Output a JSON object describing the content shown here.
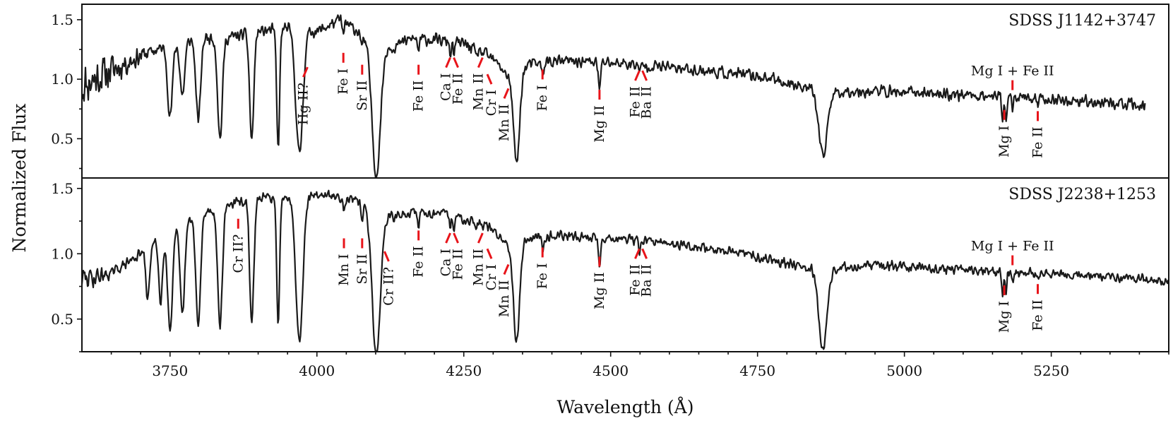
{
  "chart_data": {
    "type": "line",
    "xlabel": "Wavelength (Å)",
    "ylabel": "Normalized Flux",
    "xlim": [
      3600,
      5450
    ],
    "x_ticks": [
      3750,
      4000,
      4250,
      4500,
      4750,
      5000,
      5250
    ],
    "x_minor_step": 50,
    "y_ticks": [
      0.5,
      1.0,
      1.5
    ],
    "y_tick_labels": [
      "0.5",
      "1.0",
      "1.5"
    ],
    "panels": [
      {
        "title": "SDSS J1142+3747",
        "ylim": [
          0.17,
          1.63
        ],
        "x_end": 5410,
        "anchors": [
          [
            3600,
            0.95
          ],
          [
            3640,
            1.05
          ],
          [
            3700,
            1.2
          ],
          [
            3760,
            1.3
          ],
          [
            3800,
            1.35
          ],
          [
            3850,
            1.35
          ],
          [
            3900,
            1.4
          ],
          [
            3950,
            1.43
          ],
          [
            4000,
            1.4
          ],
          [
            4040,
            1.5
          ],
          [
            4070,
            1.4
          ],
          [
            4090,
            1.3
          ],
          [
            4130,
            1.27
          ],
          [
            4160,
            1.34
          ],
          [
            4200,
            1.33
          ],
          [
            4250,
            1.3
          ],
          [
            4290,
            1.2
          ],
          [
            4310,
            1.12
          ],
          [
            4330,
            1.0
          ],
          [
            4360,
            1.12
          ],
          [
            4400,
            1.15
          ],
          [
            4450,
            1.15
          ],
          [
            4500,
            1.14
          ],
          [
            4600,
            1.1
          ],
          [
            4700,
            1.05
          ],
          [
            4760,
            1.02
          ],
          [
            4800,
            0.97
          ],
          [
            4840,
            0.93
          ],
          [
            4870,
            0.88
          ],
          [
            4900,
            0.9
          ],
          [
            4950,
            0.9
          ],
          [
            5050,
            0.88
          ],
          [
            5150,
            0.86
          ],
          [
            5250,
            0.83
          ],
          [
            5350,
            0.8
          ],
          [
            5410,
            0.77
          ]
        ],
        "absorptions": [
          [
            3750,
            0.6,
            4
          ],
          [
            3771,
            0.45,
            4
          ],
          [
            3798,
            0.7,
            4
          ],
          [
            3835,
            0.85,
            4
          ],
          [
            3889,
            0.9,
            3.5
          ],
          [
            3934,
            1.0,
            2.5
          ],
          [
            3970,
            1.05,
            6
          ],
          [
            4101,
            1.1,
            7
          ],
          [
            4340,
            0.75,
            5
          ],
          [
            4861,
            0.55,
            7
          ],
          [
            4481,
            0.25,
            1.8
          ],
          [
            5167,
            0.2,
            1.5
          ],
          [
            5173,
            0.2,
            1.5
          ],
          [
            5184,
            0.12,
            1.5
          ],
          [
            4045,
            0.12,
            1.5
          ],
          [
            4077,
            0.1,
            1.5
          ],
          [
            4173,
            0.1,
            1.5
          ],
          [
            4227,
            0.1,
            1.5
          ],
          [
            4233,
            0.1,
            1.5
          ],
          [
            4271,
            0.08,
            1.5
          ],
          [
            4384,
            0.1,
            1.8
          ],
          [
            4549,
            0.08,
            1.5
          ],
          [
            5227,
            0.08,
            1.5
          ]
        ],
        "noise_amp": 0.06,
        "noisy_until": 3720,
        "noise_extra": 0.18,
        "seed": 11,
        "lines": [
          {
            "label": "Hg II?",
            "x": 3984,
            "y": 1.06,
            "slant": -1
          },
          {
            "label": "Fe I",
            "x": 4045,
            "y": 1.18,
            "slant": 0
          },
          {
            "label": "Sr II",
            "x": 4077,
            "y": 1.08,
            "slant": 0
          },
          {
            "label": "Fe II",
            "x": 4173,
            "y": 1.08,
            "slant": 0
          },
          {
            "label": "Ca I",
            "x": 4227,
            "y": 1.14,
            "slant": -1
          },
          {
            "label": "Fe II",
            "x": 4233,
            "y": 1.14,
            "slant": 1
          },
          {
            "label": "Mn II",
            "x": 4282,
            "y": 1.14,
            "slant": -1
          },
          {
            "label": "Cr I",
            "x": 4290,
            "y": 1.0,
            "slant": 1
          },
          {
            "label": "Mn II",
            "x": 4326,
            "y": 0.88,
            "slant": -1
          },
          {
            "label": "Fe I",
            "x": 4384,
            "y": 1.04,
            "slant": 0
          },
          {
            "label": "Mg II",
            "x": 4481,
            "y": 0.87,
            "slant": 0
          },
          {
            "label": "Fe II",
            "x": 4549,
            "y": 1.03,
            "slant": -1
          },
          {
            "label": "Ba II",
            "x": 4554,
            "y": 1.03,
            "slant": 1
          },
          {
            "label": "Mg I",
            "x": 5170,
            "y": 0.7,
            "slant": 0
          },
          {
            "label": "Fe II",
            "x": 5227,
            "y": 0.69,
            "slant": 0
          },
          {
            "label": "Mg I + Fe II",
            "x": 5184,
            "y": 0.95,
            "slant": 0,
            "above": true
          }
        ]
      },
      {
        "title": "SDSS J2238+1253",
        "ylim": [
          0.25,
          1.58
        ],
        "x_end": 5450,
        "anchors": [
          [
            3600,
            0.8
          ],
          [
            3650,
            0.85
          ],
          [
            3700,
            1.0
          ],
          [
            3760,
            1.2
          ],
          [
            3800,
            1.3
          ],
          [
            3850,
            1.38
          ],
          [
            3900,
            1.42
          ],
          [
            3950,
            1.45
          ],
          [
            4000,
            1.45
          ],
          [
            4050,
            1.43
          ],
          [
            4090,
            1.35
          ],
          [
            4130,
            1.28
          ],
          [
            4170,
            1.32
          ],
          [
            4220,
            1.3
          ],
          [
            4270,
            1.25
          ],
          [
            4300,
            1.18
          ],
          [
            4330,
            1.05
          ],
          [
            4360,
            1.12
          ],
          [
            4400,
            1.14
          ],
          [
            4450,
            1.13
          ],
          [
            4500,
            1.12
          ],
          [
            4600,
            1.08
          ],
          [
            4700,
            1.02
          ],
          [
            4760,
            0.97
          ],
          [
            4800,
            0.93
          ],
          [
            4840,
            0.9
          ],
          [
            4880,
            0.88
          ],
          [
            4900,
            0.9
          ],
          [
            4950,
            0.91
          ],
          [
            5050,
            0.89
          ],
          [
            5150,
            0.86
          ],
          [
            5250,
            0.85
          ],
          [
            5350,
            0.82
          ],
          [
            5450,
            0.79
          ]
        ],
        "absorptions": [
          [
            3712,
            0.4,
            3
          ],
          [
            3734,
            0.5,
            3
          ],
          [
            3750,
            0.75,
            4
          ],
          [
            3771,
            0.7,
            4
          ],
          [
            3798,
            0.85,
            4
          ],
          [
            3835,
            0.9,
            4
          ],
          [
            3889,
            0.95,
            3.5
          ],
          [
            3934,
            1.0,
            2.5
          ],
          [
            3970,
            1.1,
            6
          ],
          [
            4101,
            1.1,
            7
          ],
          [
            4340,
            0.75,
            5
          ],
          [
            4861,
            0.62,
            7
          ],
          [
            4481,
            0.22,
            1.8
          ],
          [
            5167,
            0.18,
            1.5
          ],
          [
            5173,
            0.18,
            1.5
          ],
          [
            5184,
            0.1,
            1.5
          ],
          [
            4046,
            0.1,
            1.5
          ],
          [
            4077,
            0.1,
            1.5
          ],
          [
            4173,
            0.1,
            1.5
          ],
          [
            4227,
            0.1,
            1.5
          ],
          [
            4233,
            0.1,
            1.5
          ],
          [
            4271,
            0.08,
            1.5
          ],
          [
            4384,
            0.08,
            1.8
          ],
          [
            4549,
            0.08,
            1.5
          ],
          [
            5227,
            0.06,
            1.5
          ]
        ],
        "noise_amp": 0.045,
        "noisy_until": 3650,
        "noise_extra": 0.08,
        "seed": 29,
        "lines": [
          {
            "label": "Cr II?",
            "x": 3866,
            "y": 1.23,
            "slant": 0
          },
          {
            "label": "Mn I",
            "x": 4046,
            "y": 1.08,
            "slant": 0
          },
          {
            "label": "Sr II",
            "x": 4077,
            "y": 1.08,
            "slant": 0
          },
          {
            "label": "Cr II?",
            "x": 4115,
            "y": 0.98,
            "slant": 1
          },
          {
            "label": "Fe II",
            "x": 4173,
            "y": 1.14,
            "slant": 0
          },
          {
            "label": "Ca I",
            "x": 4227,
            "y": 1.12,
            "slant": -1
          },
          {
            "label": "Fe II",
            "x": 4233,
            "y": 1.12,
            "slant": 1
          },
          {
            "label": "Mn II",
            "x": 4282,
            "y": 1.12,
            "slant": -1
          },
          {
            "label": "Cr I",
            "x": 4290,
            "y": 1.0,
            "slant": 1
          },
          {
            "label": "Mn II",
            "x": 4326,
            "y": 0.88,
            "slant": -1
          },
          {
            "label": "Fe I",
            "x": 4384,
            "y": 1.01,
            "slant": 0
          },
          {
            "label": "Mg II",
            "x": 4481,
            "y": 0.94,
            "slant": 0
          },
          {
            "label": "Fe II",
            "x": 4549,
            "y": 1.0,
            "slant": -1
          },
          {
            "label": "Ba II",
            "x": 4554,
            "y": 1.0,
            "slant": 1
          },
          {
            "label": "Mg I",
            "x": 5170,
            "y": 0.72,
            "slant": 0
          },
          {
            "label": "Fe II",
            "x": 5227,
            "y": 0.73,
            "slant": 0
          },
          {
            "label": "Mg I + Fe II",
            "x": 5184,
            "y": 0.95,
            "slant": 0,
            "above": true
          }
        ]
      }
    ]
  }
}
